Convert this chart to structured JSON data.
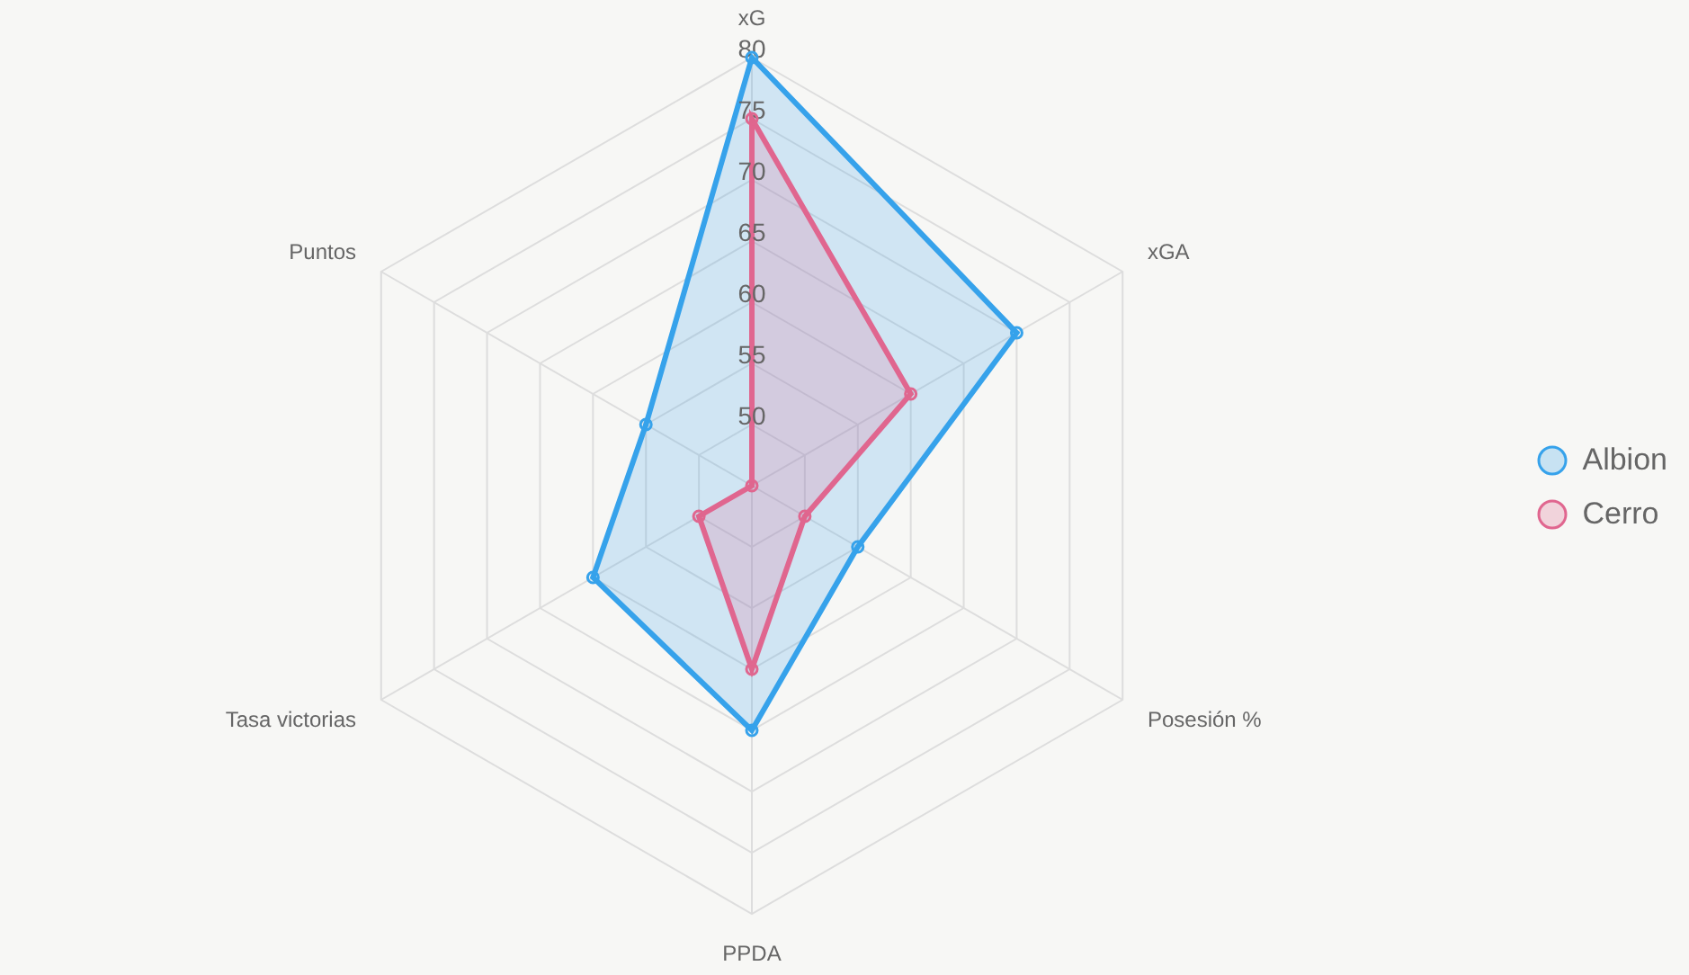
{
  "chart_data": {
    "type": "radar",
    "categories": [
      "xG",
      "xGA",
      "Posesión %",
      "PPDA",
      "Tasa victorias",
      "Puntos"
    ],
    "series": [
      {
        "name": "Albion",
        "color": "#36a2eb",
        "values": [
          80,
          70,
          55,
          65,
          60,
          55
        ]
      },
      {
        "name": "Cerro",
        "color": "#e0668f",
        "values": [
          75,
          60,
          50,
          60,
          50,
          45
        ]
      }
    ],
    "ylim": [
      45,
      80
    ],
    "yticks": [
      50,
      55,
      60,
      65,
      70,
      75,
      80
    ],
    "grid": true,
    "legend": "right",
    "marker": "circle"
  }
}
